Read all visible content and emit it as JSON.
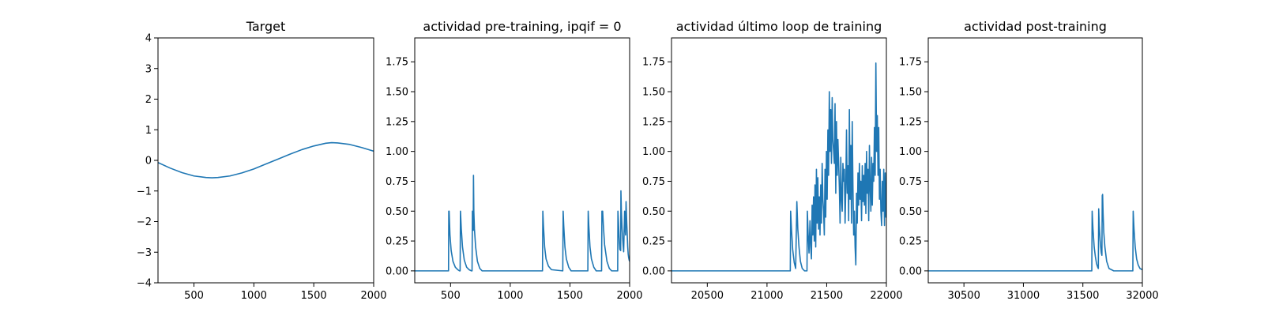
{
  "figure": {
    "background": "#ffffff",
    "line_color": "#1f77b4"
  },
  "chart_data": [
    {
      "type": "line",
      "title": "Target",
      "xlim": [
        200,
        2000
      ],
      "ylim": [
        -4,
        4
      ],
      "xticks": [
        500,
        1000,
        1500,
        2000
      ],
      "yticks": [
        4,
        3,
        2,
        1,
        0,
        -1,
        -2,
        -3,
        -4
      ],
      "xticklabels": [
        "500",
        "1000",
        "1500",
        "2000"
      ],
      "yticklabels": [
        "4",
        "3",
        "2",
        "1",
        "0",
        "−1",
        "−2",
        "−3",
        "−4"
      ],
      "series": [
        {
          "x": [
            200,
            300,
            400,
            500,
            600,
            650,
            700,
            800,
            900,
            1000,
            1100,
            1200,
            1300,
            1400,
            1500,
            1600,
            1650,
            1700,
            1800,
            1900,
            2000
          ],
          "y": [
            -0.07,
            -0.25,
            -0.4,
            -0.51,
            -0.56,
            -0.57,
            -0.56,
            -0.51,
            -0.41,
            -0.28,
            -0.12,
            0.04,
            0.2,
            0.35,
            0.47,
            0.56,
            0.58,
            0.57,
            0.52,
            0.42,
            0.3
          ]
        }
      ]
    },
    {
      "type": "line",
      "title": "actividad pre-training, ipqif = 0",
      "xlim": [
        200,
        2000
      ],
      "ylim": [
        -0.1,
        1.95
      ],
      "xticks": [
        500,
        1000,
        1500,
        2000
      ],
      "yticks": [
        0,
        0.25,
        0.5,
        0.75,
        1,
        1.25,
        1.5,
        1.75
      ],
      "xticklabels": [
        "500",
        "1000",
        "1500",
        "2000"
      ],
      "yticklabels": [
        "0.00",
        "0.25",
        "0.50",
        "0.75",
        "1.00",
        "1.25",
        "1.50",
        "1.75"
      ],
      "series": [
        {
          "x": [
            200,
            483,
            485,
            488,
            495,
            505,
            520,
            540,
            560,
            575,
            580,
            583,
            590,
            600,
            615,
            635,
            655,
            675,
            680,
            683,
            688,
            690,
            692,
            695,
            700,
            710,
            725,
            745,
            765,
            1270,
            1273,
            1278,
            1288,
            1300,
            1320,
            1345,
            1440,
            1443,
            1448,
            1458,
            1470,
            1490,
            1510,
            1650,
            1653,
            1658,
            1668,
            1680,
            1700,
            1720,
            1765,
            1768,
            1771,
            1774,
            1780,
            1790,
            1810,
            1830,
            1850,
            1900,
            1902,
            1906,
            1912,
            1918,
            1925,
            1927,
            1931,
            1937,
            1945,
            1950,
            1958,
            1962,
            1966,
            1970,
            1976,
            1980,
            1984,
            1988,
            1992,
            1996,
            2000
          ],
          "y": [
            0,
            0,
            0.5,
            0.5,
            0.3,
            0.17,
            0.08,
            0.03,
            0.01,
            0,
            0,
            0.5,
            0.35,
            0.2,
            0.09,
            0.03,
            0.01,
            0,
            0,
            0.5,
            0.42,
            0.34,
            0.8,
            0.5,
            0.35,
            0.2,
            0.08,
            0.02,
            0,
            0,
            0.5,
            0.38,
            0.2,
            0.1,
            0.04,
            0.01,
            0,
            0.5,
            0.38,
            0.2,
            0.1,
            0.03,
            0,
            0,
            0.5,
            0.38,
            0.2,
            0.1,
            0.03,
            0,
            0,
            0.5,
            0.45,
            0.5,
            0.38,
            0.22,
            0.08,
            0.02,
            0,
            0,
            0.5,
            0.42,
            0.28,
            0.18,
            0.17,
            0.67,
            0.5,
            0.35,
            0.22,
            0.16,
            0.5,
            0.38,
            0.3,
            0.58,
            0.4,
            0.3,
            0.2,
            0.14,
            0.11,
            0.09,
            0.08
          ]
        }
      ]
    },
    {
      "type": "line",
      "title": "actividad último loop de training",
      "xlim": [
        20200,
        22000
      ],
      "ylim": [
        -0.1,
        1.95
      ],
      "xticks": [
        20500,
        21000,
        21500,
        22000
      ],
      "yticks": [
        0,
        0.25,
        0.5,
        0.75,
        1,
        1.25,
        1.5,
        1.75
      ],
      "xticklabels": [
        "20500",
        "21000",
        "21500",
        "22000"
      ],
      "yticklabels": [
        "0.00",
        "0.25",
        "0.50",
        "0.75",
        "1.00",
        "1.25",
        "1.50",
        "1.75"
      ],
      "series": [
        {
          "x": [
            20200,
            21195,
            21198,
            21205,
            21215,
            21228,
            21240,
            21245,
            21250,
            21258,
            21268,
            21280,
            21295,
            21315,
            21335,
            21338,
            21345,
            21352,
            21360,
            21366,
            21372,
            21378,
            21384,
            21390,
            21396,
            21402,
            21408,
            21414,
            21420,
            21426,
            21432,
            21438,
            21444,
            21450,
            21456,
            21462,
            21468,
            21474,
            21480,
            21486,
            21492,
            21498,
            21504,
            21510,
            21516,
            21522,
            21528,
            21534,
            21540,
            21546,
            21552,
            21558,
            21564,
            21570,
            21576,
            21582,
            21588,
            21594,
            21600,
            21606,
            21612,
            21618,
            21624,
            21630,
            21636,
            21642,
            21648,
            21654,
            21660,
            21666,
            21672,
            21678,
            21684,
            21690,
            21696,
            21702,
            21708,
            21714,
            21720,
            21726,
            21732,
            21738,
            21744,
            21750,
            21756,
            21762,
            21768,
            21774,
            21780,
            21786,
            21792,
            21798,
            21804,
            21810,
            21816,
            21822,
            21828,
            21834,
            21840,
            21846,
            21852,
            21858,
            21864,
            21870,
            21876,
            21882,
            21888,
            21894,
            21900,
            21906,
            21912,
            21918,
            21924,
            21930,
            21936,
            21942,
            21948,
            21954,
            21960,
            21966,
            21972,
            21978,
            21984,
            21990,
            21996,
            22000
          ],
          "y": [
            0,
            0,
            0.5,
            0.35,
            0.18,
            0.07,
            0.02,
            0.3,
            0.58,
            0.35,
            0.2,
            0.08,
            0.02,
            0,
            0,
            0.5,
            0.3,
            0.15,
            0.42,
            0.2,
            0.1,
            0.55,
            0.3,
            0.62,
            0.25,
            0.72,
            0.2,
            0.85,
            0.4,
            0.78,
            0.35,
            0.62,
            0.3,
            0.72,
            0.4,
            0.9,
            0.6,
            0.5,
            0.3,
            0.85,
            0.45,
            1.0,
            0.6,
            1.18,
            0.8,
            1.5,
            1.0,
            1.35,
            0.9,
            1.45,
            1.1,
            1.0,
            0.9,
            1.4,
            0.65,
            1.25,
            0.8,
            1.1,
            0.9,
            0.7,
            0.4,
            0.95,
            0.6,
            0.5,
            0.9,
            0.75,
            0.85,
            0.4,
            0.7,
            1.18,
            0.65,
            0.88,
            0.42,
            1.35,
            0.6,
            1.05,
            0.4,
            1.25,
            0.7,
            0.3,
            0.5,
            0.2,
            0.05,
            0.65,
            0.4,
            0.82,
            0.55,
            0.9,
            0.6,
            0.75,
            0.42,
            0.88,
            0.58,
            0.8,
            0.55,
            0.9,
            0.48,
            1.0,
            0.65,
            0.85,
            0.42,
            1.05,
            0.7,
            0.5,
            0.95,
            0.55,
            0.9,
            0.75,
            1.2,
            0.8,
            1.74,
            1.0,
            1.3,
            0.8,
            1.2,
            0.6,
            0.85,
            0.5,
            0.38,
            0.75,
            0.5,
            0.85,
            0.38,
            0.82,
            0.45,
            0.6
          ]
        }
      ]
    },
    {
      "type": "line",
      "title": "actividad post-training",
      "xlim": [
        30200,
        32000
      ],
      "ylim": [
        -0.1,
        1.95
      ],
      "xticks": [
        30500,
        31000,
        31500,
        32000
      ],
      "yticks": [
        0,
        0.25,
        0.5,
        0.75,
        1,
        1.25,
        1.5,
        1.75
      ],
      "xticklabels": [
        "30500",
        "31000",
        "31500",
        "32000"
      ],
      "yticklabels": [
        "0.00",
        "0.25",
        "0.50",
        "0.75",
        "1.00",
        "1.25",
        "1.50",
        "1.75"
      ],
      "series": [
        {
          "x": [
            30200,
            31575,
            31578,
            31585,
            31595,
            31605,
            31615,
            31625,
            31630,
            31633,
            31638,
            31645,
            31650,
            31655,
            31660,
            31663,
            31666,
            31670,
            31676,
            31685,
            31700,
            31720,
            31740,
            31760,
            31920,
            31923,
            31930,
            31940,
            31952,
            31965,
            31980,
            32000
          ],
          "y": [
            0,
            0,
            0.5,
            0.35,
            0.2,
            0.12,
            0.06,
            0.03,
            0.02,
            0.52,
            0.38,
            0.26,
            0.2,
            0.15,
            0.13,
            0.63,
            0.64,
            0.48,
            0.32,
            0.2,
            0.08,
            0.02,
            0.01,
            0,
            0,
            0.5,
            0.35,
            0.2,
            0.1,
            0.05,
            0.02,
            0.01
          ]
        }
      ]
    }
  ]
}
